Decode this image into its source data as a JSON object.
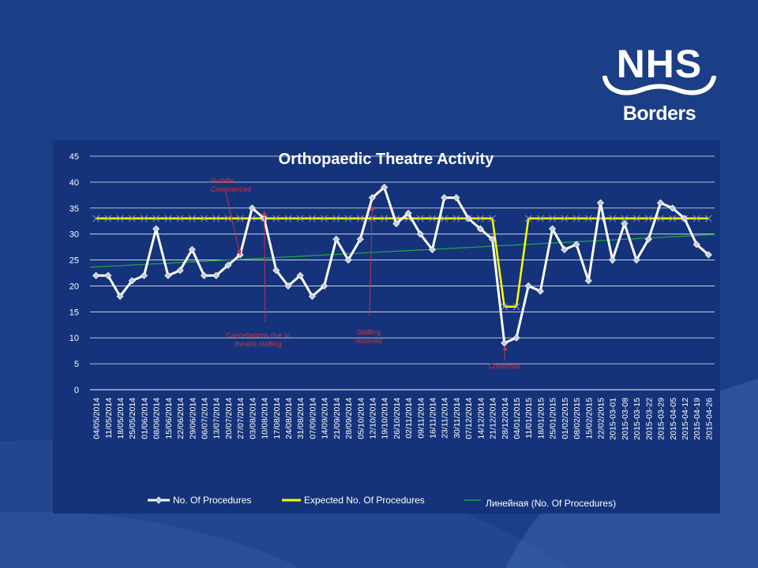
{
  "logo": {
    "brand": "NHS",
    "region": "Borders"
  },
  "colors": {
    "background": "#1b3f86",
    "panel": "#14337a",
    "actual_line": "#ffffff",
    "expected_line": "#ffff00",
    "trend_line": "#22aa44",
    "annotation": "#cc3340",
    "grid": "#ffffff"
  },
  "chart_data": {
    "type": "line",
    "title": "Orthopaedic Theatre Activity",
    "xlabel": "",
    "ylabel": "",
    "ylim": [
      0,
      45
    ],
    "yticks": [
      "0",
      "5",
      "10",
      "15",
      "20",
      "25",
      "30",
      "35",
      "40",
      "45"
    ],
    "grid": true,
    "legend_position": "bottom",
    "categories": [
      "04/05/2014",
      "11/05/2014",
      "18/05/2014",
      "25/05/2014",
      "01/06/2014",
      "08/06/2014",
      "15/06/2014",
      "22/06/2014",
      "29/06/2014",
      "06/07/2014",
      "13/07/2014",
      "20/07/2014",
      "27/07/2014",
      "03/08/2014",
      "10/08/2014",
      "17/08/2014",
      "24/08/2014",
      "31/08/2014",
      "07/09/2014",
      "14/09/2014",
      "21/09/2014",
      "28/09/2014",
      "05/10/2014",
      "12/10/2014",
      "19/10/2014",
      "26/10/2014",
      "02/11/2014",
      "09/11/2014",
      "16/11/2014",
      "23/11/2014",
      "30/11/2014",
      "07/12/2014",
      "14/12/2014",
      "21/12/2014",
      "28/12/2014",
      "04/01/2015",
      "11/01/2015",
      "18/01/2015",
      "25/01/2015",
      "01/02/2015",
      "08/02/2015",
      "15/02/2015",
      "22/02/2015",
      "2015-03-01",
      "2015-03-08",
      "2015-03-15",
      "2015-03-22",
      "2015-03-29",
      "2015-04-05",
      "2015-04-12",
      "2015-04-19",
      "2015-04-26"
    ],
    "series": [
      {
        "name": "No. Of Procedures",
        "values": [
          22,
          22,
          18,
          21,
          22,
          31,
          22,
          23,
          27,
          22,
          22,
          24,
          26,
          35,
          33,
          23,
          20,
          22,
          18,
          20,
          29,
          25,
          29,
          37,
          39,
          32,
          34,
          30,
          27,
          37,
          37,
          33,
          31,
          29,
          9,
          10,
          20,
          19,
          31,
          27,
          28,
          21,
          36,
          25,
          32,
          25,
          29,
          36,
          35,
          33,
          28,
          26
        ]
      },
      {
        "name": "Expected No. Of Procedures",
        "values": [
          33,
          33,
          33,
          33,
          33,
          33,
          33,
          33,
          33,
          33,
          33,
          33,
          33,
          33,
          33,
          33,
          33,
          33,
          33,
          33,
          33,
          33,
          33,
          33,
          33,
          33,
          33,
          33,
          33,
          33,
          33,
          33,
          33,
          33,
          16,
          16,
          33,
          33,
          33,
          33,
          33,
          33,
          33,
          33,
          33,
          33,
          33,
          33,
          33,
          33,
          33,
          33
        ]
      },
      {
        "name": "Линейная (No. Of Procedures)",
        "trend": [
          23.6,
          29.9
        ]
      }
    ],
    "annotations": [
      {
        "text": [
          "Huddle",
          "Commenced"
        ],
        "target_index": 12,
        "target_value": 26
      },
      {
        "text": [
          "Cancellations due to",
          "theatre staffing"
        ],
        "target_index": 14,
        "target_value": 34
      },
      {
        "text": [
          "Staffing",
          "resolved"
        ],
        "target_index": 23,
        "target_value": 35
      },
      {
        "text": [
          "Christmas"
        ],
        "target_index": 34,
        "target_value": 9
      }
    ]
  }
}
